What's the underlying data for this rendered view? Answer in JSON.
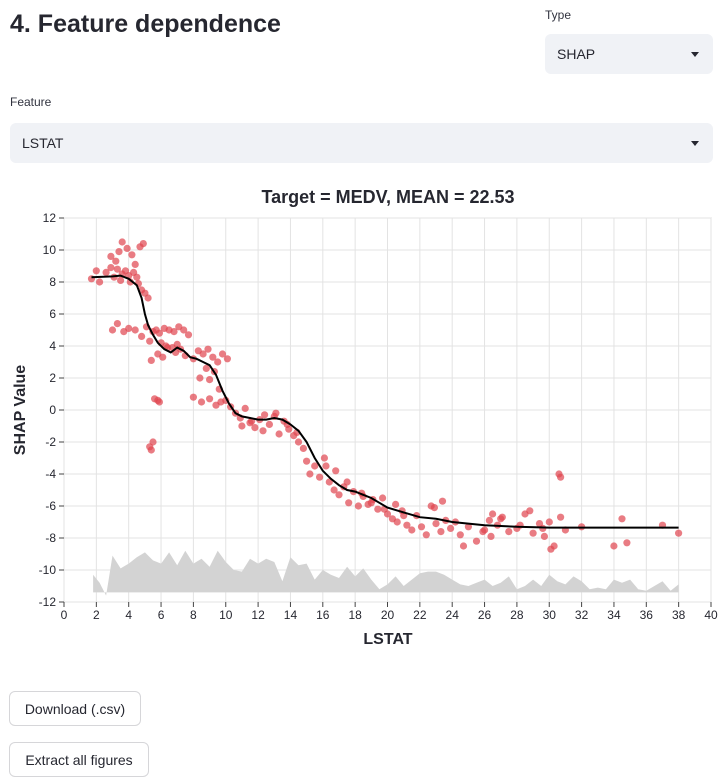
{
  "page": {
    "title": "4. Feature dependence"
  },
  "type_select": {
    "label": "Type",
    "value": "SHAP"
  },
  "feature_select": {
    "label": "Feature",
    "value": "LSTAT"
  },
  "buttons": {
    "download": "Download (.csv)",
    "extract": "Extract all figures"
  },
  "colors": {
    "points": "#e0454f",
    "trend": "#000000",
    "density": "#d3d3d3",
    "select_bg": "#f0f2f6"
  },
  "chart_data": {
    "type": "scatter",
    "title": "Target = MEDV, MEAN = 22.53",
    "xlabel": "LSTAT",
    "ylabel": "SHAP Value",
    "xlim": [
      0,
      40
    ],
    "ylim": [
      -12,
      12
    ],
    "xticks": [
      0,
      2,
      4,
      6,
      8,
      10,
      12,
      14,
      16,
      18,
      20,
      22,
      24,
      26,
      28,
      30,
      32,
      34,
      36,
      38,
      40
    ],
    "yticks": [
      -12,
      -10,
      -8,
      -6,
      -4,
      -2,
      0,
      2,
      4,
      6,
      8,
      10,
      12
    ],
    "grid": true,
    "legend": "none",
    "series": [
      {
        "kind": "points",
        "x": [
          1.7,
          2.0,
          2.2,
          2.6,
          2.9,
          3.1,
          3.3,
          3.5,
          3.6,
          3.8,
          4.0,
          4.1,
          4.3,
          4.5,
          4.6,
          4.8,
          5.0,
          5.2,
          4.7,
          4.9,
          2.9,
          3.2,
          3.4,
          3.6,
          3.9,
          4.2,
          4.4,
          3.0,
          3.3,
          3.7,
          4.0,
          4.4,
          4.8,
          5.1,
          5.3,
          5.5,
          5.7,
          5.9,
          6.2,
          6.5,
          6.8,
          7.1,
          7.4,
          7.7,
          7.2,
          5.4,
          5.8,
          6.1,
          6.4,
          6.9,
          7.5,
          8.0,
          8.3,
          8.6,
          8.9,
          9.2,
          9.5,
          9.8,
          10.1,
          8.4,
          8.8,
          9.0,
          9.3,
          9.6,
          5.6,
          5.8,
          5.9,
          5.5,
          5.4,
          5.3,
          6.0,
          6.3,
          6.7,
          7.0,
          8.0,
          8.5,
          9.0,
          9.4,
          9.7,
          10.0,
          10.3,
          10.6,
          10.9,
          11.2,
          11.5,
          11.8,
          12.1,
          12.4,
          12.7,
          13.0,
          13.3,
          13.6,
          13.9,
          14.2,
          14.5,
          14.8,
          11.0,
          11.6,
          12.3,
          13.1,
          13.8,
          14.4,
          15.0,
          15.2,
          15.5,
          15.8,
          16.1,
          16.4,
          16.7,
          17.0,
          17.3,
          17.6,
          17.9,
          18.2,
          18.5,
          18.8,
          19.1,
          19.4,
          19.7,
          20.0,
          20.3,
          20.6,
          20.9,
          21.2,
          21.5,
          21.8,
          22.1,
          22.4,
          22.7,
          23.0,
          23.3,
          23.6,
          23.9,
          24.2,
          24.5,
          25.0,
          25.5,
          26.0,
          26.4,
          26.8,
          27.1,
          27.5,
          28.0,
          28.5,
          29.0,
          29.4,
          29.7,
          30.0,
          30.3,
          30.7,
          31.0,
          32.0,
          34.0,
          34.5,
          34.8,
          37.0,
          38.0,
          24.7,
          25.9,
          26.3,
          27.0,
          28.2,
          29.6,
          30.1,
          30.6,
          30.7,
          17.5,
          18.4,
          19.0,
          19.8,
          20.5,
          21.0,
          16.2,
          16.8,
          22.9,
          23.4,
          26.5,
          28.8
        ],
        "y": [
          8.2,
          8.7,
          8.0,
          8.6,
          8.9,
          8.3,
          8.8,
          8.1,
          8.5,
          8.7,
          8.4,
          8.0,
          8.6,
          8.3,
          7.9,
          7.5,
          7.3,
          7.0,
          10.2,
          10.4,
          9.6,
          9.3,
          9.9,
          10.5,
          10.1,
          9.7,
          9.1,
          5.0,
          5.4,
          4.9,
          5.1,
          5.0,
          4.6,
          5.2,
          4.3,
          4.9,
          5.0,
          4.8,
          5.1,
          5.0,
          4.9,
          5.2,
          5.0,
          4.7,
          3.8,
          3.1,
          3.5,
          3.3,
          3.9,
          3.6,
          3.4,
          3.2,
          3.7,
          3.5,
          3.8,
          3.3,
          3.0,
          3.5,
          3.2,
          2.0,
          2.6,
          1.9,
          2.4,
          1.3,
          0.7,
          0.6,
          0.5,
          -2.0,
          -2.5,
          -2.3,
          4.2,
          4.0,
          3.9,
          4.1,
          0.8,
          0.5,
          0.7,
          0.3,
          0.5,
          0.6,
          0.2,
          -0.2,
          -0.5,
          0.1,
          -0.8,
          -1.1,
          -0.6,
          -0.3,
          -0.9,
          -0.4,
          -1.5,
          -0.7,
          -1.2,
          -1.6,
          -2.0,
          -2.4,
          -1.0,
          -0.7,
          -1.3,
          -0.2,
          -0.9,
          -1.4,
          -3.2,
          -4.0,
          -3.5,
          -4.2,
          -3.0,
          -4.5,
          -5.0,
          -5.3,
          -4.8,
          -5.8,
          -5.1,
          -6.0,
          -5.4,
          -5.9,
          -5.6,
          -6.2,
          -5.5,
          -6.5,
          -6.8,
          -7.0,
          -6.3,
          -7.2,
          -7.5,
          -6.6,
          -7.3,
          -7.8,
          -6.0,
          -7.1,
          -7.6,
          -6.9,
          -7.4,
          -7.0,
          -7.8,
          -7.3,
          -8.2,
          -7.5,
          -7.9,
          -7.2,
          -6.7,
          -7.6,
          -7.4,
          -6.5,
          -7.7,
          -7.1,
          -7.9,
          -7.0,
          -8.5,
          -6.7,
          -7.5,
          -7.3,
          -8.5,
          -6.8,
          -8.3,
          -7.2,
          -7.7,
          -8.5,
          -7.6,
          -6.9,
          -6.8,
          -7.2,
          -7.4,
          -8.7,
          -4.0,
          -4.2,
          -4.5,
          -5.2,
          -5.8,
          -6.2,
          -5.9,
          -6.6,
          -3.5,
          -3.8,
          -6.1,
          -5.7,
          -6.5,
          -6.3
        ]
      },
      {
        "kind": "trend",
        "x": [
          1.7,
          3.0,
          3.5,
          4.0,
          4.5,
          4.8,
          5.0,
          5.2,
          5.5,
          5.8,
          6.2,
          6.6,
          7.0,
          7.4,
          7.8,
          8.2,
          8.6,
          9.0,
          9.4,
          9.8,
          10.2,
          10.6,
          11.0,
          11.5,
          12.0,
          12.5,
          13.0,
          13.5,
          14.0,
          14.5,
          15.0,
          15.5,
          16.0,
          16.5,
          17.0,
          17.5,
          18.0,
          18.5,
          19.0,
          19.5,
          20.0,
          21.0,
          22.0,
          23.0,
          24.0,
          26.0,
          28.0,
          30.0,
          32.0,
          34.0,
          36.0,
          38.0
        ],
        "y": [
          8.3,
          8.35,
          8.4,
          8.2,
          7.8,
          7.0,
          6.0,
          5.3,
          4.7,
          4.2,
          3.8,
          3.6,
          3.9,
          3.7,
          3.3,
          3.2,
          3.0,
          2.8,
          2.2,
          1.2,
          0.4,
          -0.2,
          -0.4,
          -0.5,
          -0.6,
          -0.6,
          -0.5,
          -0.6,
          -0.9,
          -1.3,
          -2.0,
          -3.0,
          -3.8,
          -4.3,
          -4.7,
          -5.0,
          -5.1,
          -5.3,
          -5.5,
          -5.8,
          -6.1,
          -6.4,
          -6.7,
          -6.8,
          -7.0,
          -7.2,
          -7.3,
          -7.35,
          -7.35,
          -7.35,
          -7.35,
          -7.35
        ]
      },
      {
        "kind": "density",
        "x": [
          1.8,
          2.2,
          2.6,
          3.0,
          3.5,
          4.0,
          4.5,
          5.0,
          5.5,
          6.0,
          6.5,
          7.0,
          7.5,
          8.0,
          8.5,
          9.0,
          9.5,
          10.0,
          10.5,
          11.0,
          11.5,
          12.0,
          12.5,
          13.0,
          13.5,
          14.0,
          14.5,
          15.0,
          15.5,
          16.0,
          16.5,
          17.0,
          17.5,
          18.0,
          18.5,
          19.0,
          19.5,
          20.0,
          20.5,
          21.0,
          21.5,
          22.0,
          22.5,
          23.0,
          23.5,
          24.0,
          24.5,
          25.0,
          25.5,
          26.0,
          26.5,
          27.0,
          27.5,
          28.0,
          28.5,
          29.0,
          29.5,
          30.0,
          30.5,
          31.0,
          31.5,
          32.0,
          32.5,
          33.0,
          33.5,
          34.0,
          34.5,
          35.0,
          35.5,
          36.0,
          36.5,
          37.0,
          37.5,
          38.0
        ],
        "y": [
          -10.3,
          -10.8,
          -11.6,
          -9.1,
          -9.9,
          -9.6,
          -9.2,
          -8.9,
          -9.4,
          -9.6,
          -8.9,
          -9.7,
          -8.8,
          -9.6,
          -9.3,
          -9.8,
          -8.8,
          -9.5,
          -10.0,
          -10.1,
          -9.3,
          -9.6,
          -9.3,
          -9.5,
          -10.7,
          -9.2,
          -9.7,
          -9.6,
          -10.6,
          -10.0,
          -10.3,
          -10.5,
          -9.8,
          -10.4,
          -9.9,
          -10.6,
          -11.2,
          -10.9,
          -10.4,
          -11.0,
          -10.6,
          -10.2,
          -10.1,
          -10.1,
          -10.3,
          -10.6,
          -10.9,
          -11.0,
          -10.8,
          -10.6,
          -11.0,
          -10.8,
          -10.4,
          -11.2,
          -11.0,
          -10.6,
          -11.0,
          -10.3,
          -10.7,
          -10.9,
          -10.4,
          -10.7,
          -11.2,
          -11.1,
          -11.2,
          -10.6,
          -10.8,
          -10.6,
          -11.2,
          -11.3,
          -11.0,
          -10.7,
          -11.3,
          -10.9
        ]
      }
    ]
  }
}
